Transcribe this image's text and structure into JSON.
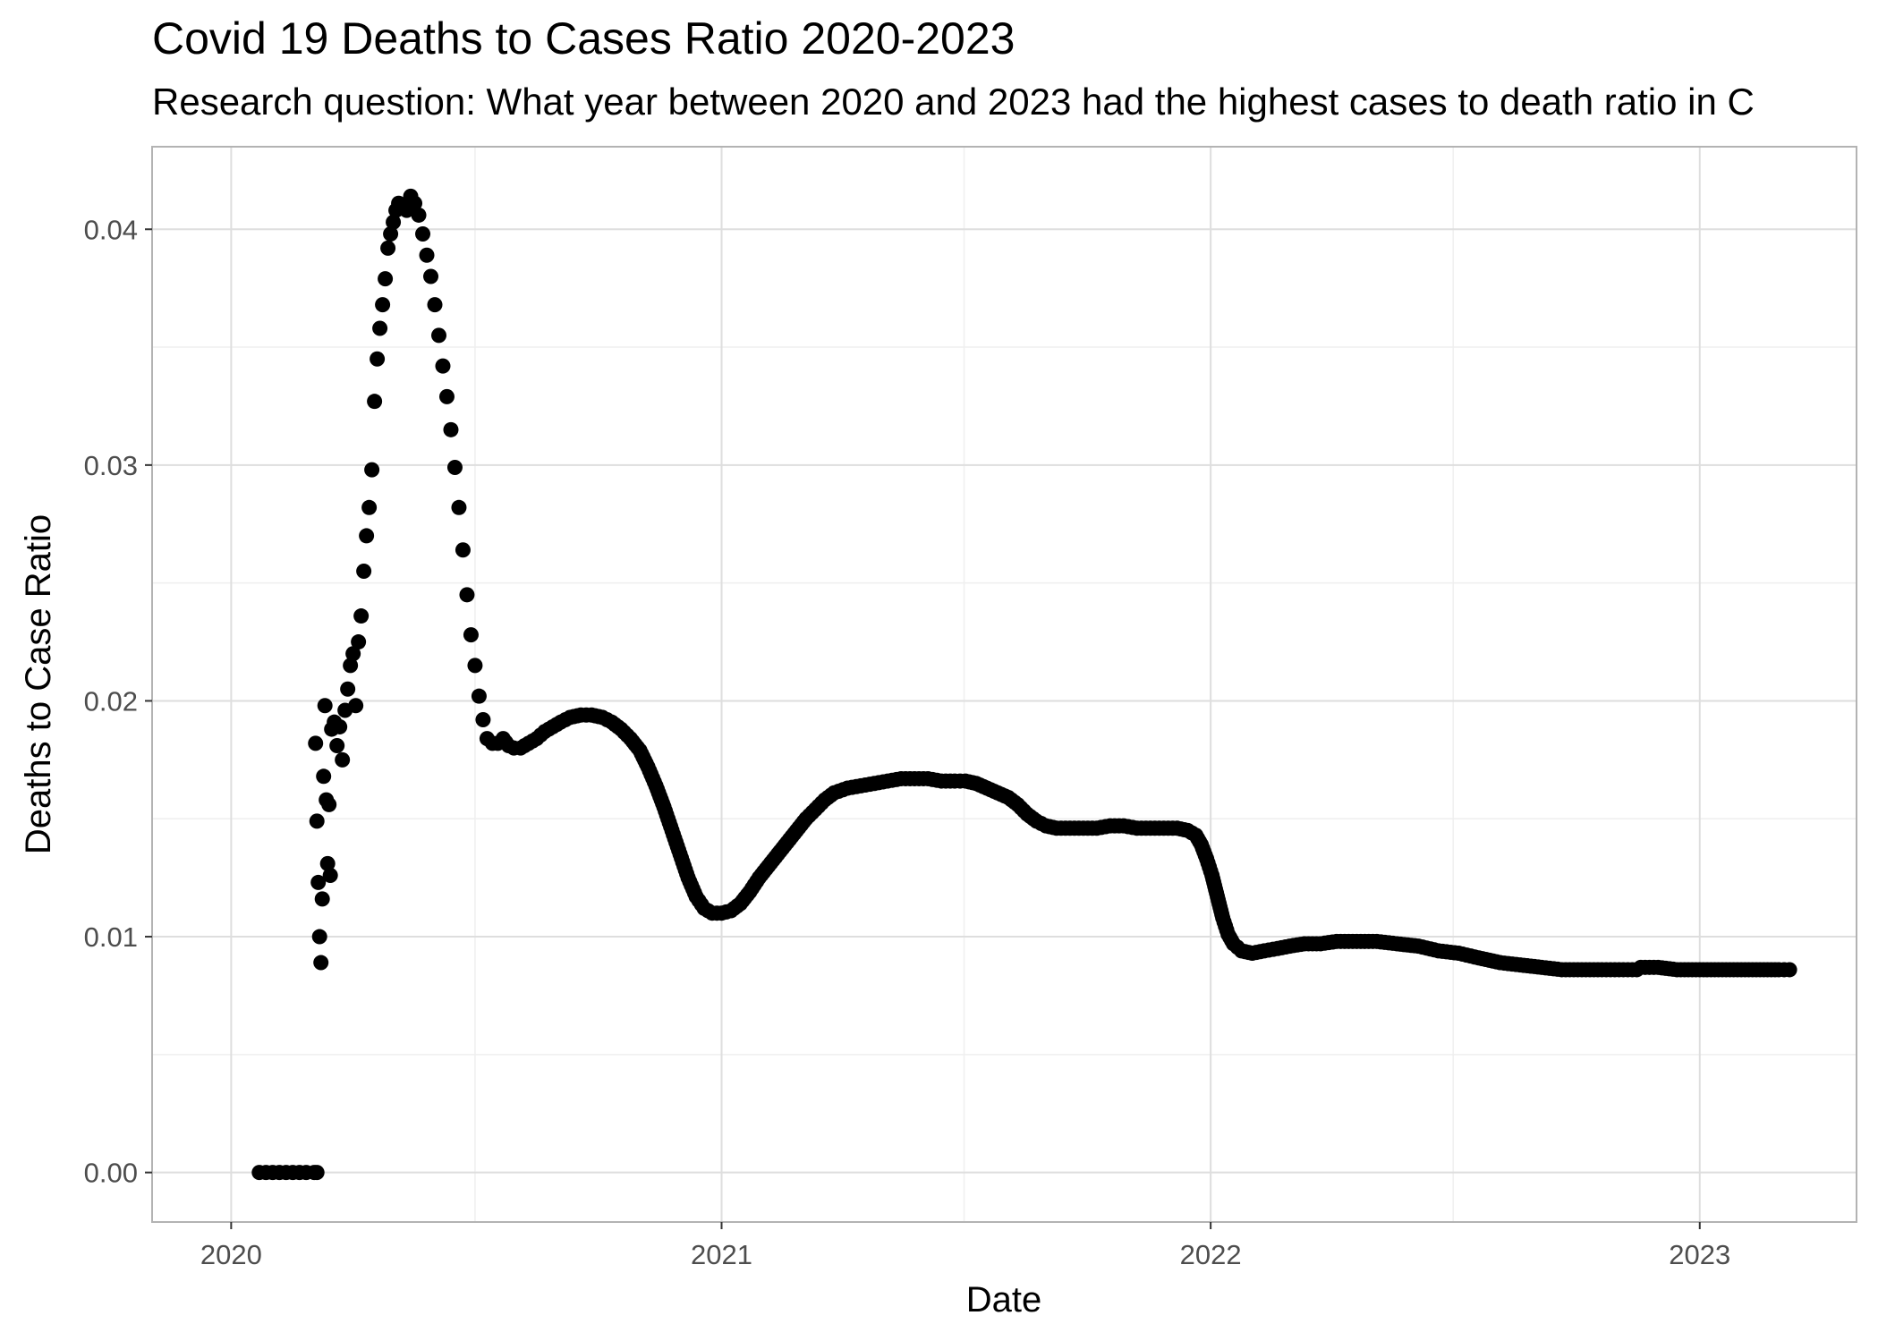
{
  "chart_data": {
    "type": "scatter",
    "title": "Covid 19 Deaths to Cases Ratio 2020-2023",
    "subtitle": "Research question: What year between 2020 and 2023 had the highest cases to death ratio in C",
    "xlabel": "Date",
    "ylabel": "Deaths to Case Ratio",
    "x_ticks": [
      "2020",
      "2021",
      "2022",
      "2023"
    ],
    "y_ticks": [
      "0.00",
      "0.01",
      "0.02",
      "0.03",
      "0.04"
    ],
    "xlim": [
      "2019-11-03",
      "2023-04-28"
    ],
    "ylim": [
      -0.0021,
      0.0435
    ],
    "grid": true,
    "legend": "none",
    "points": [
      [
        "2020-01-22",
        0.0
      ],
      [
        "2020-01-27",
        0.0
      ],
      [
        "2020-02-01",
        0.0
      ],
      [
        "2020-02-06",
        0.0
      ],
      [
        "2020-02-11",
        0.0
      ],
      [
        "2020-02-16",
        0.0
      ],
      [
        "2020-02-21",
        0.0
      ],
      [
        "2020-02-26",
        0.0
      ],
      [
        "2020-03-03",
        0.0
      ],
      [
        "2020-03-05",
        0.0
      ],
      [
        "2020-03-04",
        0.0182
      ],
      [
        "2020-03-05",
        0.0149
      ],
      [
        "2020-03-06",
        0.0123
      ],
      [
        "2020-03-07",
        0.01
      ],
      [
        "2020-03-08",
        0.0089
      ],
      [
        "2020-03-09",
        0.0116
      ],
      [
        "2020-03-10",
        0.0168
      ],
      [
        "2020-03-11",
        0.0198
      ],
      [
        "2020-03-12",
        0.0158
      ],
      [
        "2020-03-13",
        0.0131
      ],
      [
        "2020-03-14",
        0.0156
      ],
      [
        "2020-03-15",
        0.0126
      ],
      [
        "2020-03-16",
        0.0188
      ],
      [
        "2020-03-18",
        0.0191
      ],
      [
        "2020-03-20",
        0.0181
      ],
      [
        "2020-03-22",
        0.0189
      ],
      [
        "2020-03-24",
        0.0175
      ],
      [
        "2020-03-26",
        0.0196
      ],
      [
        "2020-03-28",
        0.0205
      ],
      [
        "2020-03-30",
        0.0215
      ],
      [
        "2020-04-01",
        0.022
      ],
      [
        "2020-04-03",
        0.0198
      ],
      [
        "2020-04-05",
        0.0225
      ],
      [
        "2020-04-07",
        0.0236
      ],
      [
        "2020-04-09",
        0.0255
      ],
      [
        "2020-04-11",
        0.027
      ],
      [
        "2020-04-13",
        0.0282
      ],
      [
        "2020-04-15",
        0.0298
      ],
      [
        "2020-04-17",
        0.0327
      ],
      [
        "2020-04-19",
        0.0345
      ],
      [
        "2020-04-21",
        0.0358
      ],
      [
        "2020-04-23",
        0.0368
      ],
      [
        "2020-04-25",
        0.0379
      ],
      [
        "2020-04-27",
        0.0392
      ],
      [
        "2020-04-29",
        0.0398
      ],
      [
        "2020-05-01",
        0.0403
      ],
      [
        "2020-05-03",
        0.0408
      ],
      [
        "2020-05-05",
        0.0411
      ],
      [
        "2020-05-08",
        0.041
      ],
      [
        "2020-05-11",
        0.0408
      ],
      [
        "2020-05-14",
        0.0414
      ],
      [
        "2020-05-17",
        0.0411
      ],
      [
        "2020-05-20",
        0.0406
      ],
      [
        "2020-05-23",
        0.0398
      ],
      [
        "2020-05-26",
        0.0389
      ],
      [
        "2020-05-29",
        0.038
      ],
      [
        "2020-06-01",
        0.0368
      ],
      [
        "2020-06-04",
        0.0355
      ],
      [
        "2020-06-07",
        0.0342
      ],
      [
        "2020-06-10",
        0.0329
      ],
      [
        "2020-06-13",
        0.0315
      ],
      [
        "2020-06-16",
        0.0299
      ],
      [
        "2020-06-19",
        0.0282
      ],
      [
        "2020-06-22",
        0.0264
      ],
      [
        "2020-06-25",
        0.0245
      ],
      [
        "2020-06-28",
        0.0228
      ],
      [
        "2020-07-01",
        0.0215
      ],
      [
        "2020-07-04",
        0.0202
      ],
      [
        "2020-07-07",
        0.0192
      ],
      [
        "2020-07-10",
        0.0184
      ],
      [
        "2020-07-14",
        0.0182
      ],
      [
        "2020-07-18",
        0.0182
      ],
      [
        "2020-07-22",
        0.0184
      ],
      [
        "2020-07-26",
        0.0181
      ],
      [
        "2020-07-30",
        0.018
      ],
      [
        "2020-08-04",
        0.018
      ],
      [
        "2020-08-10",
        0.0182
      ],
      [
        "2020-08-16",
        0.0184
      ],
      [
        "2020-08-22",
        0.0187
      ],
      [
        "2020-08-28",
        0.0189
      ],
      [
        "2020-09-03",
        0.0191
      ],
      [
        "2020-09-10",
        0.0193
      ],
      [
        "2020-09-18",
        0.0194
      ],
      [
        "2020-09-26",
        0.0194
      ],
      [
        "2020-10-04",
        0.0193
      ],
      [
        "2020-10-11",
        0.0191
      ],
      [
        "2020-10-18",
        0.0188
      ],
      [
        "2020-10-25",
        0.0184
      ],
      [
        "2020-11-01",
        0.0179
      ],
      [
        "2020-11-07",
        0.0172
      ],
      [
        "2020-11-13",
        0.0164
      ],
      [
        "2020-11-19",
        0.0155
      ],
      [
        "2020-11-25",
        0.0145
      ],
      [
        "2020-12-01",
        0.0135
      ],
      [
        "2020-12-07",
        0.0125
      ],
      [
        "2020-12-13",
        0.0117
      ],
      [
        "2020-12-19",
        0.0112
      ],
      [
        "2020-12-25",
        0.011
      ],
      [
        "2021-01-01",
        0.011
      ],
      [
        "2021-01-08",
        0.0111
      ],
      [
        "2021-01-15",
        0.0114
      ],
      [
        "2021-01-22",
        0.0119
      ],
      [
        "2021-01-29",
        0.0125
      ],
      [
        "2021-02-05",
        0.013
      ],
      [
        "2021-02-12",
        0.0135
      ],
      [
        "2021-02-19",
        0.014
      ],
      [
        "2021-02-26",
        0.0145
      ],
      [
        "2021-03-05",
        0.015
      ],
      [
        "2021-03-12",
        0.0154
      ],
      [
        "2021-03-19",
        0.0158
      ],
      [
        "2021-03-26",
        0.0161
      ],
      [
        "2021-04-05",
        0.0163
      ],
      [
        "2021-04-15",
        0.0164
      ],
      [
        "2021-04-25",
        0.0165
      ],
      [
        "2021-05-05",
        0.0166
      ],
      [
        "2021-05-15",
        0.0167
      ],
      [
        "2021-05-25",
        0.0167
      ],
      [
        "2021-06-04",
        0.0167
      ],
      [
        "2021-06-14",
        0.0166
      ],
      [
        "2021-06-24",
        0.0166
      ],
      [
        "2021-07-02",
        0.0166
      ],
      [
        "2021-07-10",
        0.0165
      ],
      [
        "2021-07-18",
        0.0163
      ],
      [
        "2021-07-26",
        0.0161
      ],
      [
        "2021-08-03",
        0.0159
      ],
      [
        "2021-08-10",
        0.0156
      ],
      [
        "2021-08-17",
        0.0152
      ],
      [
        "2021-08-24",
        0.0149
      ],
      [
        "2021-08-31",
        0.0147
      ],
      [
        "2021-09-08",
        0.0146
      ],
      [
        "2021-09-18",
        0.0146
      ],
      [
        "2021-09-28",
        0.0146
      ],
      [
        "2021-10-08",
        0.0146
      ],
      [
        "2021-10-18",
        0.0147
      ],
      [
        "2021-10-28",
        0.0147
      ],
      [
        "2021-11-07",
        0.0146
      ],
      [
        "2021-11-17",
        0.0146
      ],
      [
        "2021-11-27",
        0.0146
      ],
      [
        "2021-12-07",
        0.0146
      ],
      [
        "2021-12-15",
        0.0145
      ],
      [
        "2021-12-21",
        0.0143
      ],
      [
        "2021-12-25",
        0.0139
      ],
      [
        "2021-12-29",
        0.0133
      ],
      [
        "2022-01-02",
        0.0126
      ],
      [
        "2022-01-06",
        0.0117
      ],
      [
        "2022-01-10",
        0.0108
      ],
      [
        "2022-01-14",
        0.0101
      ],
      [
        "2022-01-18",
        0.0097
      ],
      [
        "2022-01-24",
        0.0094
      ],
      [
        "2022-02-01",
        0.0093
      ],
      [
        "2022-02-10",
        0.0094
      ],
      [
        "2022-02-20",
        0.0095
      ],
      [
        "2022-03-01",
        0.0096
      ],
      [
        "2022-03-12",
        0.0097
      ],
      [
        "2022-03-24",
        0.0097
      ],
      [
        "2022-04-05",
        0.0098
      ],
      [
        "2022-04-20",
        0.0098
      ],
      [
        "2022-05-05",
        0.0098
      ],
      [
        "2022-05-20",
        0.0097
      ],
      [
        "2022-06-05",
        0.0096
      ],
      [
        "2022-06-20",
        0.0094
      ],
      [
        "2022-07-05",
        0.0093
      ],
      [
        "2022-07-20",
        0.0091
      ],
      [
        "2022-08-05",
        0.0089
      ],
      [
        "2022-08-20",
        0.0088
      ],
      [
        "2022-09-05",
        0.0087
      ],
      [
        "2022-09-20",
        0.0086
      ],
      [
        "2022-10-05",
        0.0086
      ],
      [
        "2022-10-20",
        0.0086
      ],
      [
        "2022-11-05",
        0.0086
      ],
      [
        "2022-11-15",
        0.0086
      ],
      [
        "2022-11-18",
        0.0087
      ],
      [
        "2022-12-01",
        0.0087
      ],
      [
        "2022-12-15",
        0.0086
      ],
      [
        "2023-01-01",
        0.0086
      ],
      [
        "2023-01-15",
        0.0086
      ],
      [
        "2023-02-01",
        0.0086
      ],
      [
        "2023-02-15",
        0.0086
      ],
      [
        "2023-03-01",
        0.0086
      ],
      [
        "2023-03-09",
        0.0086
      ]
    ]
  }
}
